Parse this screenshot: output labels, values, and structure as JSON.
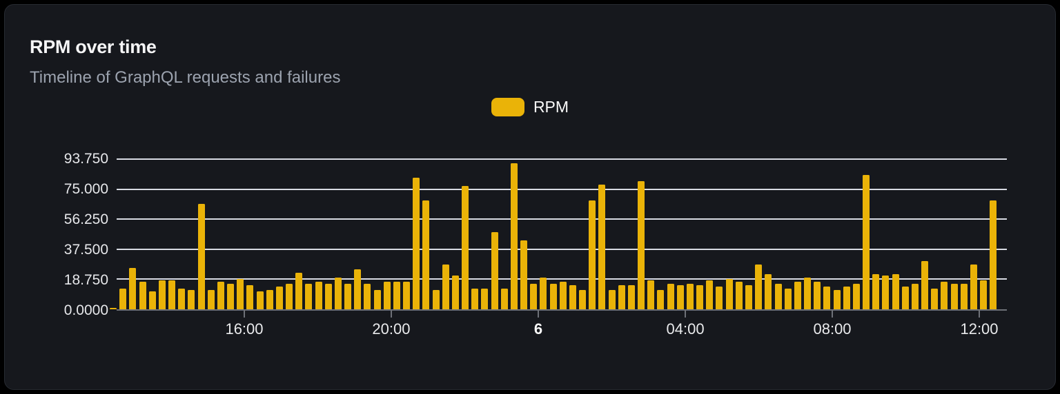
{
  "card": {
    "title": "RPM over time",
    "subtitle": "Timeline of GraphQL requests and failures"
  },
  "legend": {
    "label": "RPM",
    "swatch_color": "#eab308"
  },
  "colors": {
    "background": "#000000",
    "card_background": "#16181d",
    "card_border": "#272b32",
    "bar": "#eab308",
    "gridline": "#d9dce4",
    "axis": "#6e7178",
    "title_text": "#f5f5f6",
    "subtitle_text": "#9ca3af"
  },
  "chart_data": {
    "type": "bar",
    "title": "RPM over time",
    "subtitle": "Timeline of GraphQL requests and failures",
    "series_name": "RPM",
    "ylabel": "",
    "xlabel": "",
    "ylim": [
      0,
      93.75
    ],
    "grid": true,
    "legend_position": "top-center",
    "y_ticks": [
      "0.0000",
      "18.750",
      "37.500",
      "56.250",
      "75.000",
      "93.750"
    ],
    "x_ticks": [
      {
        "label": "16:00",
        "pct": 14.34,
        "bold": false
      },
      {
        "label": "20:00",
        "pct": 30.85,
        "bold": false
      },
      {
        "label": "6",
        "pct": 47.36,
        "bold": true
      },
      {
        "label": "04:00",
        "pct": 63.88,
        "bold": false
      },
      {
        "label": "08:00",
        "pct": 80.39,
        "bold": false
      },
      {
        "label": "12:00",
        "pct": 96.9,
        "bold": false
      }
    ],
    "values": [
      1,
      13,
      26,
      17,
      11,
      18,
      18,
      13,
      12,
      66,
      12,
      17,
      16,
      19,
      15,
      11,
      12,
      14,
      16,
      23,
      16,
      17,
      16,
      20,
      16,
      25,
      16,
      12,
      17,
      17,
      17,
      82,
      68,
      12,
      28,
      21,
      77,
      13,
      13,
      48,
      13,
      91,
      43,
      16,
      20,
      16,
      17,
      15,
      12,
      68,
      78,
      12,
      15,
      15,
      80,
      18,
      12,
      16,
      15,
      16,
      15,
      18,
      14,
      19,
      17,
      15,
      28,
      22,
      16,
      13,
      17,
      20,
      17,
      14,
      12,
      14,
      16,
      84,
      22,
      21,
      22,
      14,
      16,
      30,
      13,
      17,
      16,
      16,
      28,
      18,
      68
    ]
  }
}
